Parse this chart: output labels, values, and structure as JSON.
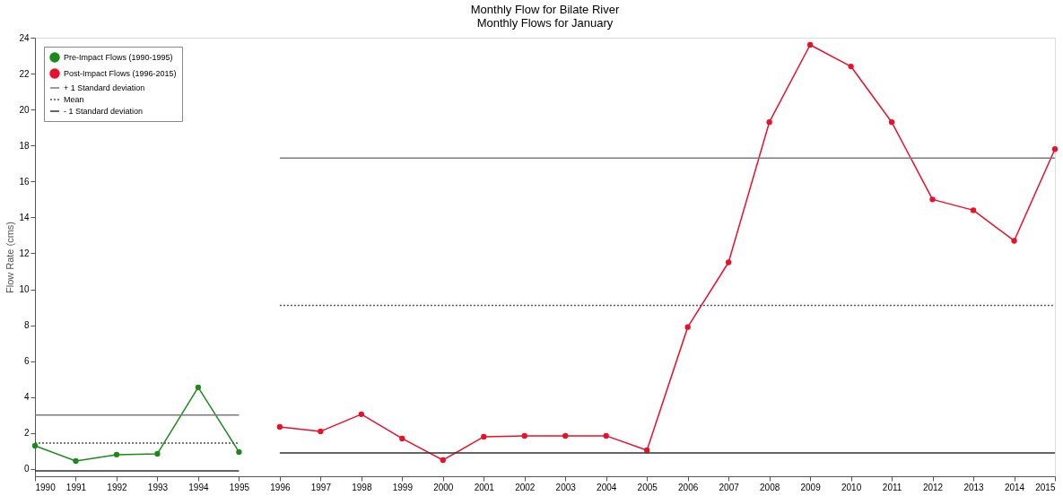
{
  "chart_data": {
    "type": "line",
    "title": "Monthly Flow for Bilate River",
    "subtitle": "Monthly Flows for January",
    "ylabel": "Flow Rate (cms)",
    "xlim": [
      1990,
      2015
    ],
    "xticks": [
      1990,
      1991,
      1992,
      1993,
      1994,
      1995,
      1996,
      1997,
      1998,
      1999,
      2000,
      2001,
      2002,
      2003,
      2004,
      2005,
      2006,
      2007,
      2008,
      2009,
      2010,
      2011,
      2012,
      2013,
      2014,
      2015
    ],
    "ylim": [
      -0.4,
      24
    ],
    "yticks": [
      0,
      2,
      4,
      6,
      8,
      10,
      12,
      14,
      16,
      18,
      20,
      22,
      24
    ],
    "grid": false,
    "legend": "top left",
    "series": [
      {
        "name": "Pre-Impact Flows (1990-1995)",
        "color": "#1a8a1a",
        "marker": "circle",
        "line_style": "solid",
        "x": [
          1990,
          1991,
          1992,
          1993,
          1994,
          1995
        ],
        "values": [
          1.3,
          0.45,
          0.8,
          0.85,
          4.55,
          0.95
        ]
      },
      {
        "name": "Post-Impact Flows (1996-2015)",
        "color": "#e8102a",
        "marker": "circle",
        "line_style": "solid",
        "x": [
          1996,
          1997,
          1998,
          1999,
          2000,
          2001,
          2002,
          2003,
          2004,
          2005,
          2006,
          2007,
          2008,
          2009,
          2010,
          2011,
          2012,
          2013,
          2014,
          2015
        ],
        "values": [
          2.35,
          2.1,
          3.05,
          1.7,
          0.5,
          1.8,
          1.85,
          1.85,
          1.85,
          1.05,
          7.9,
          11.5,
          19.3,
          23.6,
          22.4,
          19.3,
          15.0,
          14.4,
          12.7,
          17.8
        ]
      },
      {
        "name": "+ 1 Standard deviation",
        "color": "#7a7a7a",
        "marker": "none",
        "line_style": "solid",
        "x": [
          1990,
          1995
        ],
        "values": [
          3.0,
          3.0
        ]
      },
      {
        "name": "Mean",
        "color": "#505050",
        "marker": "none",
        "line_style": "dotted",
        "x": [
          1990,
          1995
        ],
        "values": [
          1.45,
          1.45
        ]
      },
      {
        "name": "- 1 Standard deviation",
        "color": "#303030",
        "marker": "none",
        "line_style": "solid",
        "x": [
          1990,
          1995
        ],
        "values": [
          -0.1,
          -0.1
        ]
      },
      {
        "color": "#7a7a7a",
        "marker": "none",
        "line_style": "solid",
        "x": [
          1996,
          2015
        ],
        "values": [
          17.3,
          17.3
        ]
      },
      {
        "color": "#505050",
        "marker": "none",
        "line_style": "dotted",
        "x": [
          1996,
          2015
        ],
        "values": [
          9.1,
          9.1
        ]
      },
      {
        "color": "#303030",
        "marker": "none",
        "line_style": "solid",
        "x": [
          1996,
          2015
        ],
        "values": [
          0.9,
          0.9
        ]
      }
    ]
  }
}
